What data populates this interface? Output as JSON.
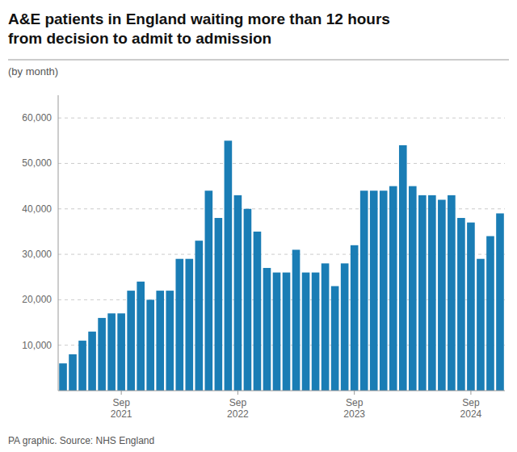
{
  "chart_data": {
    "type": "bar",
    "title": "A&E patients in England waiting more than 12 hours\nfrom decision to admit to admission",
    "subtitle": "(by month)",
    "annotations": [
      "PA graphic. Source: NHS England"
    ],
    "categories": [
      null,
      null,
      null,
      null,
      null,
      null,
      "Sep\n2021",
      null,
      null,
      null,
      null,
      null,
      null,
      null,
      null,
      null,
      null,
      null,
      "Sep\n2022",
      null,
      null,
      null,
      null,
      null,
      null,
      null,
      null,
      null,
      null,
      null,
      "Sep\n2023",
      null,
      null,
      null,
      null,
      null,
      null,
      null,
      null,
      null,
      null,
      null,
      "Sep\n2024",
      null,
      null,
      null
    ],
    "values": [
      6000,
      8000,
      11000,
      13000,
      16000,
      17000,
      17000,
      22000,
      24000,
      20000,
      22000,
      22000,
      29000,
      29000,
      33000,
      44000,
      38000,
      55000,
      43000,
      40000,
      35000,
      27000,
      26000,
      26000,
      31000,
      26000,
      26000,
      28000,
      23000,
      28000,
      32000,
      44000,
      44000,
      44000,
      45000,
      54000,
      45000,
      43000,
      43000,
      42000,
      43000,
      38000,
      37000,
      29000,
      34000,
      39000
    ],
    "color": "#1a7db5",
    "ylim": [
      0,
      65000
    ],
    "yticks": [
      {
        "value": 10000,
        "label": "10,000"
      },
      {
        "value": 20000,
        "label": "20,000"
      },
      {
        "value": 30000,
        "label": "30,000"
      },
      {
        "value": 40000,
        "label": "40,000"
      },
      {
        "value": 50000,
        "label": "50,000"
      },
      {
        "value": 60000,
        "label": "60,000"
      }
    ],
    "grid": true
  }
}
